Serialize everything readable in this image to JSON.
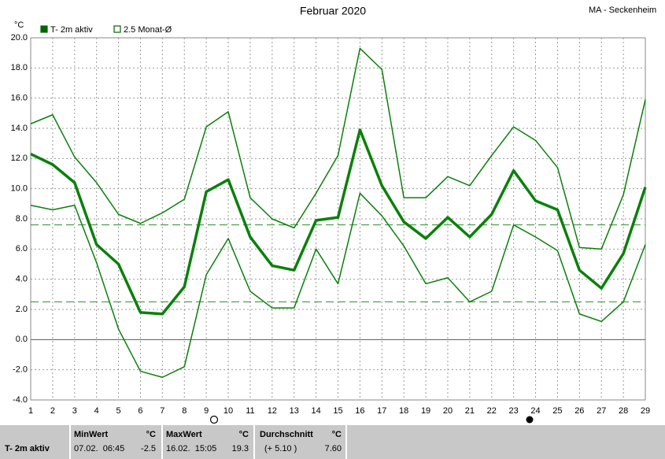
{
  "chart_data": {
    "type": "line",
    "title": "Februar 2020",
    "station": "MA - Seckenheim",
    "y_unit": "°C",
    "legend": [
      {
        "label": "T- 2m aktiv",
        "style": "filled",
        "color": "#006400"
      },
      {
        "label": "2.5 Monat-Ø",
        "style": "open",
        "color": "#006400"
      }
    ],
    "x": [
      1,
      2,
      3,
      4,
      5,
      6,
      7,
      8,
      9,
      10,
      11,
      12,
      13,
      14,
      15,
      16,
      17,
      18,
      19,
      20,
      21,
      22,
      23,
      24,
      25,
      26,
      27,
      28,
      29
    ],
    "xlim": [
      1,
      29
    ],
    "xticks": [
      1,
      2,
      3,
      4,
      5,
      6,
      7,
      8,
      9,
      10,
      11,
      12,
      13,
      14,
      15,
      16,
      17,
      18,
      19,
      20,
      21,
      22,
      23,
      24,
      25,
      26,
      27,
      28,
      29
    ],
    "ylim": [
      -4,
      20
    ],
    "yticks": [
      {
        "value": -4,
        "label": "-4.0"
      },
      {
        "value": -2,
        "label": "-2.0"
      },
      {
        "value": 0,
        "label": "0.0"
      },
      {
        "value": 2,
        "label": "2.0"
      },
      {
        "value": 4,
        "label": "4.0"
      },
      {
        "value": 6,
        "label": "6.0"
      },
      {
        "value": 8,
        "label": "8.0"
      },
      {
        "value": 10,
        "label": "10.0"
      },
      {
        "value": 12,
        "label": "12.0"
      },
      {
        "value": 14,
        "label": "14.0"
      },
      {
        "value": 16,
        "label": "16.0"
      },
      {
        "value": 18,
        "label": "18.0"
      },
      {
        "value": 20,
        "label": "20.0"
      }
    ],
    "grid": true,
    "series": [
      {
        "color": "#0a800a",
        "line_width": 1.5,
        "values": [
          14.3,
          14.9,
          12.1,
          10.4,
          8.3,
          7.7,
          8.4,
          9.3,
          14.1,
          15.1,
          9.4,
          8.0,
          7.4,
          9.7,
          12.2,
          19.3,
          17.9,
          9.4,
          9.4,
          10.8,
          10.2,
          12.2,
          14.1,
          13.2,
          11.4,
          6.1,
          6.0,
          9.6,
          15.9
        ]
      },
      {
        "color": "#0a800a",
        "line_width": 3.5,
        "values": [
          12.3,
          11.6,
          10.4,
          6.3,
          5.0,
          1.8,
          1.7,
          3.5,
          9.8,
          10.6,
          6.8,
          4.9,
          4.6,
          7.9,
          8.1,
          13.9,
          10.2,
          7.8,
          6.7,
          8.1,
          6.8,
          8.3,
          11.2,
          9.2,
          8.6,
          4.6,
          3.4,
          5.7,
          10.1
        ]
      },
      {
        "color": "#0a800a",
        "line_width": 1.5,
        "values": [
          8.9,
          8.6,
          8.9,
          5.1,
          0.7,
          -2.1,
          -2.5,
          -1.8,
          4.3,
          6.7,
          3.2,
          2.1,
          2.1,
          6.0,
          3.7,
          9.7,
          8.2,
          6.2,
          3.7,
          4.1,
          2.5,
          3.2,
          7.6,
          6.8,
          5.9,
          1.7,
          1.2,
          2.5,
          6.3
        ]
      }
    ],
    "reference_lines": [
      {
        "value": 7.6,
        "color": "#2e8b2e"
      },
      {
        "value": 2.5,
        "color": "#2e8b2e"
      }
    ],
    "summary": {
      "row_label": "T- 2m aktiv",
      "min": {
        "label": "MinWert",
        "unit": "°C",
        "time": "07.02.  06:45",
        "value": "-2.5"
      },
      "max": {
        "label": "MaxWert",
        "unit": "°C",
        "time": "16.02.  15:05",
        "value": "19.3"
      },
      "avg": {
        "label": "Durchschnitt",
        "unit": "°C",
        "time": "(+ 5.10 )",
        "value": "7.60"
      }
    }
  }
}
